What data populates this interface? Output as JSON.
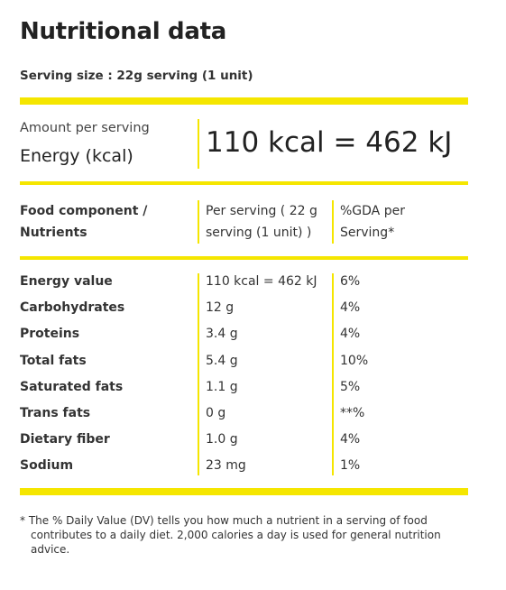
{
  "title": "Nutritional data",
  "serving_size": "Serving size : 22g serving (1 unit)",
  "amount": {
    "label": "Amount per serving",
    "name": "Energy (kcal)",
    "value": "110 kcal = 462 kJ"
  },
  "table": {
    "header": [
      "Food component / Nutrients",
      "Per serving ( 22 g serving (1 unit) )",
      "%GDA per Serving*"
    ],
    "rows": [
      [
        "Energy value",
        "110 kcal = 462 kJ",
        "6%"
      ],
      [
        "Carbohydrates",
        "12 g",
        "4%"
      ],
      [
        "Proteins",
        "3.4 g",
        "4%"
      ],
      [
        "Total fats",
        "5.4 g",
        "10%"
      ],
      [
        "Saturated fats",
        "1.1 g",
        "5%"
      ],
      [
        "Trans fats",
        "0 g",
        "**%"
      ],
      [
        "Dietary fiber",
        "1.0 g",
        "4%"
      ],
      [
        "Sodium",
        "23 mg",
        "1%"
      ]
    ]
  },
  "footnote": "* The % Daily Value (DV) tells you how much a nutrient in a serving of food contributes to a daily diet. 2,000 calories a day is used for general nutrition advice."
}
